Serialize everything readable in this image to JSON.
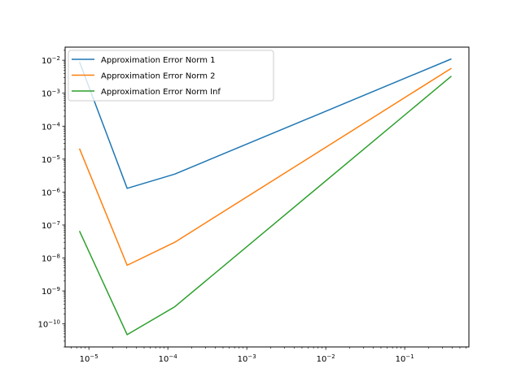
{
  "chart_data": {
    "type": "line",
    "title": "",
    "xlabel": "",
    "ylabel": "",
    "xscale": "log",
    "yscale": "log",
    "xlim": [
      5e-06,
      0.65
    ],
    "ylim": [
      2e-11,
      0.025
    ],
    "x_ticks": [
      {
        "value": 1e-05,
        "base": "10",
        "exp": "−5"
      },
      {
        "value": 0.0001,
        "base": "10",
        "exp": "−4"
      },
      {
        "value": 0.001,
        "base": "10",
        "exp": "−3"
      },
      {
        "value": 0.01,
        "base": "10",
        "exp": "−2"
      },
      {
        "value": 0.1,
        "base": "10",
        "exp": "−1"
      }
    ],
    "y_ticks": [
      {
        "value": 0.01,
        "base": "10",
        "exp": "−2"
      },
      {
        "value": 0.001,
        "base": "10",
        "exp": "−3"
      },
      {
        "value": 0.0001,
        "base": "10",
        "exp": "−4"
      },
      {
        "value": 1e-05,
        "base": "10",
        "exp": "−5"
      },
      {
        "value": 1e-06,
        "base": "10",
        "exp": "−6"
      },
      {
        "value": 1e-07,
        "base": "10",
        "exp": "−7"
      },
      {
        "value": 1e-08,
        "base": "10",
        "exp": "−8"
      },
      {
        "value": 1e-09,
        "base": "10",
        "exp": "−9"
      },
      {
        "value": 1e-10,
        "base": "10",
        "exp": "−10"
      }
    ],
    "grid": false,
    "legend_position": "top-left",
    "x": [
      7.6e-06,
      3.05e-05,
      0.000122,
      0.39
    ],
    "series": [
      {
        "name": "Approximation Error Norm 1",
        "color": "#1f77b4",
        "values": [
          0.009,
          1.3e-06,
          3.5e-06,
          0.011
        ]
      },
      {
        "name": "Approximation Error Norm 2",
        "color": "#ff7f0e",
        "values": [
          2.1e-05,
          6e-09,
          3e-08,
          0.0057
        ]
      },
      {
        "name": "Approximation Error Norm Inf",
        "color": "#2ca02c",
        "values": [
          6.6e-08,
          4.7e-11,
          3.3e-10,
          0.0033
        ]
      }
    ]
  }
}
